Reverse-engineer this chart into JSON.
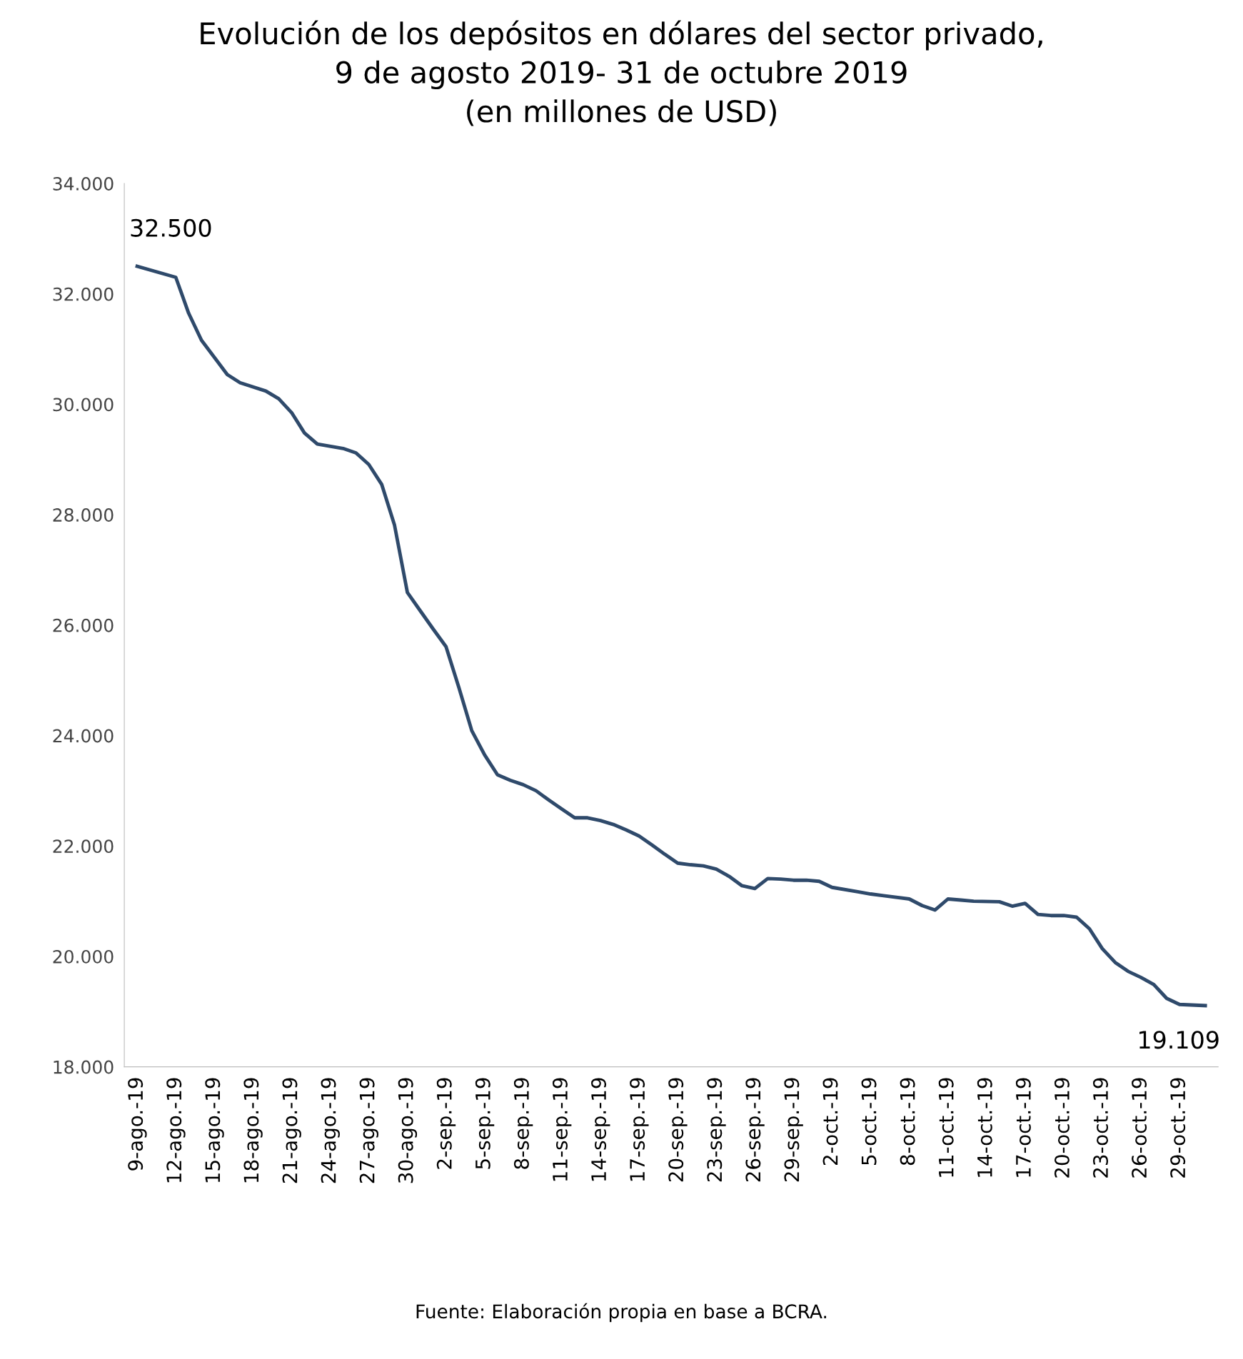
{
  "chart_data": {
    "type": "line",
    "title": "Evolución de los depósitos en dólares del sector privado,\n9 de agosto 2019- 31 de octubre 2019\n(en millones de USD)",
    "x": [
      "2019-08-09",
      "2019-08-12",
      "2019-08-13",
      "2019-08-14",
      "2019-08-16",
      "2019-08-17",
      "2019-08-19",
      "2019-08-20",
      "2019-08-21",
      "2019-08-22",
      "2019-08-23",
      "2019-08-25",
      "2019-08-26",
      "2019-08-27",
      "2019-08-28",
      "2019-08-29",
      "2019-08-30",
      "2019-08-31",
      "2019-09-01",
      "2019-09-02",
      "2019-09-03",
      "2019-09-04",
      "2019-09-05",
      "2019-09-06",
      "2019-09-07",
      "2019-09-08",
      "2019-09-09",
      "2019-09-10",
      "2019-09-11",
      "2019-09-12",
      "2019-09-13",
      "2019-09-14",
      "2019-09-15",
      "2019-09-16",
      "2019-09-17",
      "2019-09-18",
      "2019-09-19",
      "2019-09-20",
      "2019-09-21",
      "2019-09-22",
      "2019-09-23",
      "2019-09-24",
      "2019-09-25",
      "2019-09-26",
      "2019-09-27",
      "2019-09-28",
      "2019-09-29",
      "2019-09-30",
      "2019-10-01",
      "2019-10-02",
      "2019-10-04",
      "2019-10-05",
      "2019-10-06",
      "2019-10-08",
      "2019-10-09",
      "2019-10-10",
      "2019-10-11",
      "2019-10-12",
      "2019-10-13",
      "2019-10-15",
      "2019-10-16",
      "2019-10-17",
      "2019-10-18",
      "2019-10-19",
      "2019-10-20",
      "2019-10-21",
      "2019-10-22",
      "2019-10-23",
      "2019-10-24",
      "2019-10-25",
      "2019-10-26",
      "2019-10-27",
      "2019-10-28",
      "2019-10-29",
      "2019-10-31"
    ],
    "series": [
      {
        "color": "#2f4a6b",
        "values": [
          32500,
          32300,
          31650,
          31160,
          30540,
          30390,
          30240,
          30100,
          29850,
          29480,
          29280,
          29200,
          29120,
          28910,
          28550,
          27810,
          26590,
          26260,
          25930,
          25610,
          24870,
          24090,
          23650,
          23290,
          23190,
          23110,
          23000,
          22830,
          22670,
          22510,
          22510,
          22460,
          22390,
          22290,
          22180,
          22020,
          21850,
          21690,
          21660,
          21640,
          21580,
          21450,
          21280,
          21230,
          21410,
          21400,
          21380,
          21380,
          21360,
          21250,
          21170,
          21130,
          21100,
          21040,
          20920,
          20840,
          21040,
          21020,
          21000,
          20990,
          20910,
          20960,
          20760,
          20740,
          20740,
          20710,
          20500,
          20140,
          19890,
          19730,
          19620,
          19490,
          19240,
          19130,
          19109
        ]
      }
    ],
    "xlim": [
      "2019-08-08",
      "2019-11-01"
    ],
    "xticks": [
      {
        "value": "2019-08-09",
        "label": "9-ago.-19"
      },
      {
        "value": "2019-08-12",
        "label": "12-ago.-19"
      },
      {
        "value": "2019-08-15",
        "label": "15-ago.-19"
      },
      {
        "value": "2019-08-18",
        "label": "18-ago.-19"
      },
      {
        "value": "2019-08-21",
        "label": "21-ago.-19"
      },
      {
        "value": "2019-08-24",
        "label": "24-ago.-19"
      },
      {
        "value": "2019-08-27",
        "label": "27-ago.-19"
      },
      {
        "value": "2019-08-30",
        "label": "30-ago.-19"
      },
      {
        "value": "2019-09-02",
        "label": "2-sep.-19"
      },
      {
        "value": "2019-09-05",
        "label": "5-sep.-19"
      },
      {
        "value": "2019-09-08",
        "label": "8-sep.-19"
      },
      {
        "value": "2019-09-11",
        "label": "11-sep.-19"
      },
      {
        "value": "2019-09-14",
        "label": "14-sep.-19"
      },
      {
        "value": "2019-09-17",
        "label": "17-sep.-19"
      },
      {
        "value": "2019-09-20",
        "label": "20-sep.-19"
      },
      {
        "value": "2019-09-23",
        "label": "23-sep.-19"
      },
      {
        "value": "2019-09-26",
        "label": "26-sep.-19"
      },
      {
        "value": "2019-09-29",
        "label": "29-sep.-19"
      },
      {
        "value": "2019-10-02",
        "label": "2-oct.-19"
      },
      {
        "value": "2019-10-05",
        "label": "5-oct.-19"
      },
      {
        "value": "2019-10-08",
        "label": "8-oct.-19"
      },
      {
        "value": "2019-10-11",
        "label": "11-oct.-19"
      },
      {
        "value": "2019-10-14",
        "label": "14-oct.-19"
      },
      {
        "value": "2019-10-17",
        "label": "17-oct.-19"
      },
      {
        "value": "2019-10-20",
        "label": "20-oct.-19"
      },
      {
        "value": "2019-10-23",
        "label": "23-oct.-19"
      },
      {
        "value": "2019-10-26",
        "label": "26-oct.-19"
      },
      {
        "value": "2019-10-29",
        "label": "29-oct.-19"
      }
    ],
    "ylim": [
      18000,
      34000
    ],
    "yticks": [
      {
        "value": 18000,
        "label": "18.000"
      },
      {
        "value": 20000,
        "label": "20.000"
      },
      {
        "value": 22000,
        "label": "22.000"
      },
      {
        "value": 24000,
        "label": "24.000"
      },
      {
        "value": 26000,
        "label": "26.000"
      },
      {
        "value": 28000,
        "label": "28.000"
      },
      {
        "value": 30000,
        "label": "30.000"
      },
      {
        "value": 32000,
        "label": "32.000"
      },
      {
        "value": 34000,
        "label": "34.000"
      }
    ],
    "grid": false,
    "annotations": [
      {
        "text": "32.500",
        "x": "2019-08-09",
        "y": 32500
      },
      {
        "text": "19.109",
        "x": "2019-10-31",
        "y": 19109
      },
      "Fuente: Elaboración propia en base a BCRA."
    ]
  }
}
